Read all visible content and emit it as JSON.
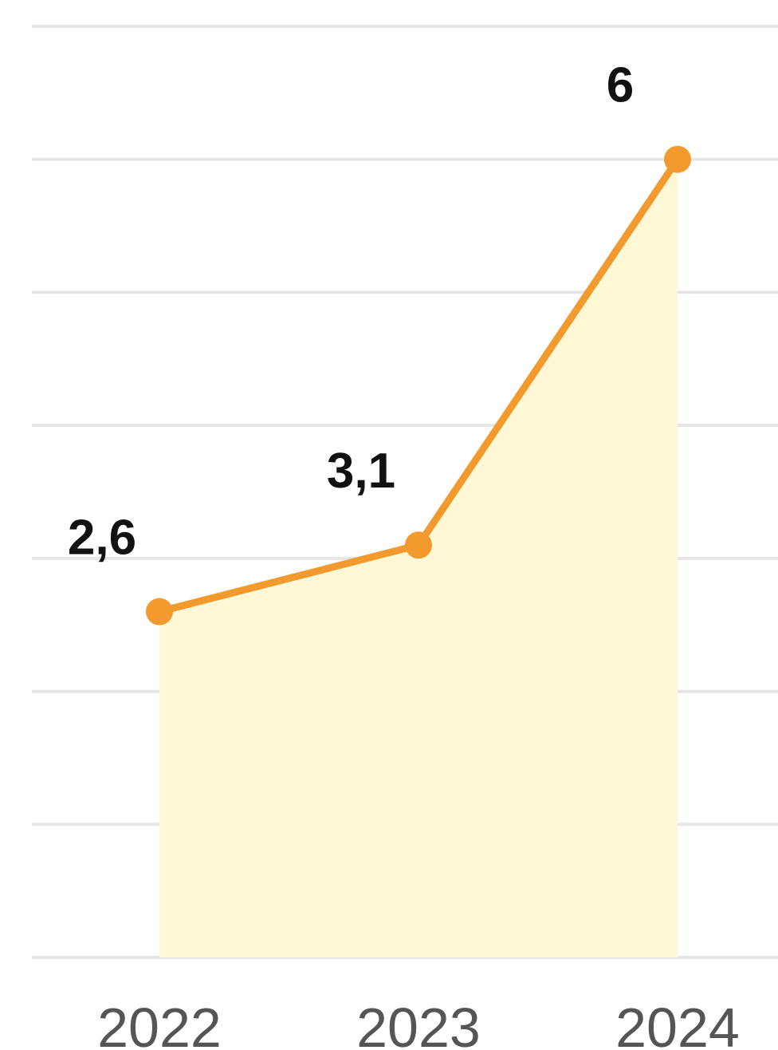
{
  "chart_data": {
    "type": "area",
    "categories": [
      "2022",
      "2023",
      "2024"
    ],
    "values": [
      2.6,
      3.1,
      6
    ],
    "value_labels": [
      "2,6",
      "3,1",
      "6"
    ],
    "color": "#f39a2e",
    "fill": "#fff8d6",
    "ylim": [
      0,
      7
    ],
    "yticks": [
      0,
      1,
      2,
      3,
      4,
      5,
      6,
      7
    ],
    "grid": true
  }
}
